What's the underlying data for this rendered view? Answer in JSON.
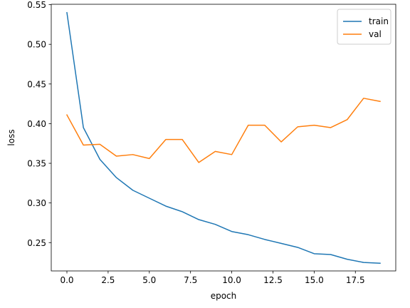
{
  "chart_data": {
    "type": "line",
    "title": "",
    "xlabel": "epoch",
    "ylabel": "loss",
    "xlim": [
      -0.95,
      19.95
    ],
    "ylim": [
      0.2143,
      0.5505
    ],
    "xticks": [
      0.0,
      2.5,
      5.0,
      7.5,
      10.0,
      12.5,
      15.0,
      17.5
    ],
    "xtick_labels": [
      "0.0",
      "2.5",
      "5.0",
      "7.5",
      "10.0",
      "12.5",
      "15.0",
      "17.5"
    ],
    "yticks": [
      0.25,
      0.3,
      0.35,
      0.4,
      0.45,
      0.5,
      0.55
    ],
    "ytick_labels": [
      "0.25",
      "0.30",
      "0.35",
      "0.40",
      "0.45",
      "0.50",
      "0.55"
    ],
    "grid": false,
    "legend_position": "top-right",
    "x": [
      0,
      1,
      2,
      3,
      4,
      5,
      6,
      7,
      8,
      9,
      10,
      11,
      12,
      13,
      14,
      15,
      16,
      17,
      18,
      19
    ],
    "series": [
      {
        "name": "train",
        "color": "#1f77b4",
        "values": [
          0.54,
          0.395,
          0.355,
          0.332,
          0.316,
          0.306,
          0.296,
          0.289,
          0.279,
          0.273,
          0.264,
          0.26,
          0.254,
          0.249,
          0.244,
          0.236,
          0.235,
          0.229,
          0.225,
          0.224
        ]
      },
      {
        "name": "val",
        "color": "#ff7f0e",
        "values": [
          0.411,
          0.373,
          0.374,
          0.359,
          0.361,
          0.356,
          0.38,
          0.38,
          0.351,
          0.365,
          0.361,
          0.398,
          0.398,
          0.377,
          0.396,
          0.398,
          0.395,
          0.405,
          0.432,
          0.428
        ]
      }
    ]
  }
}
